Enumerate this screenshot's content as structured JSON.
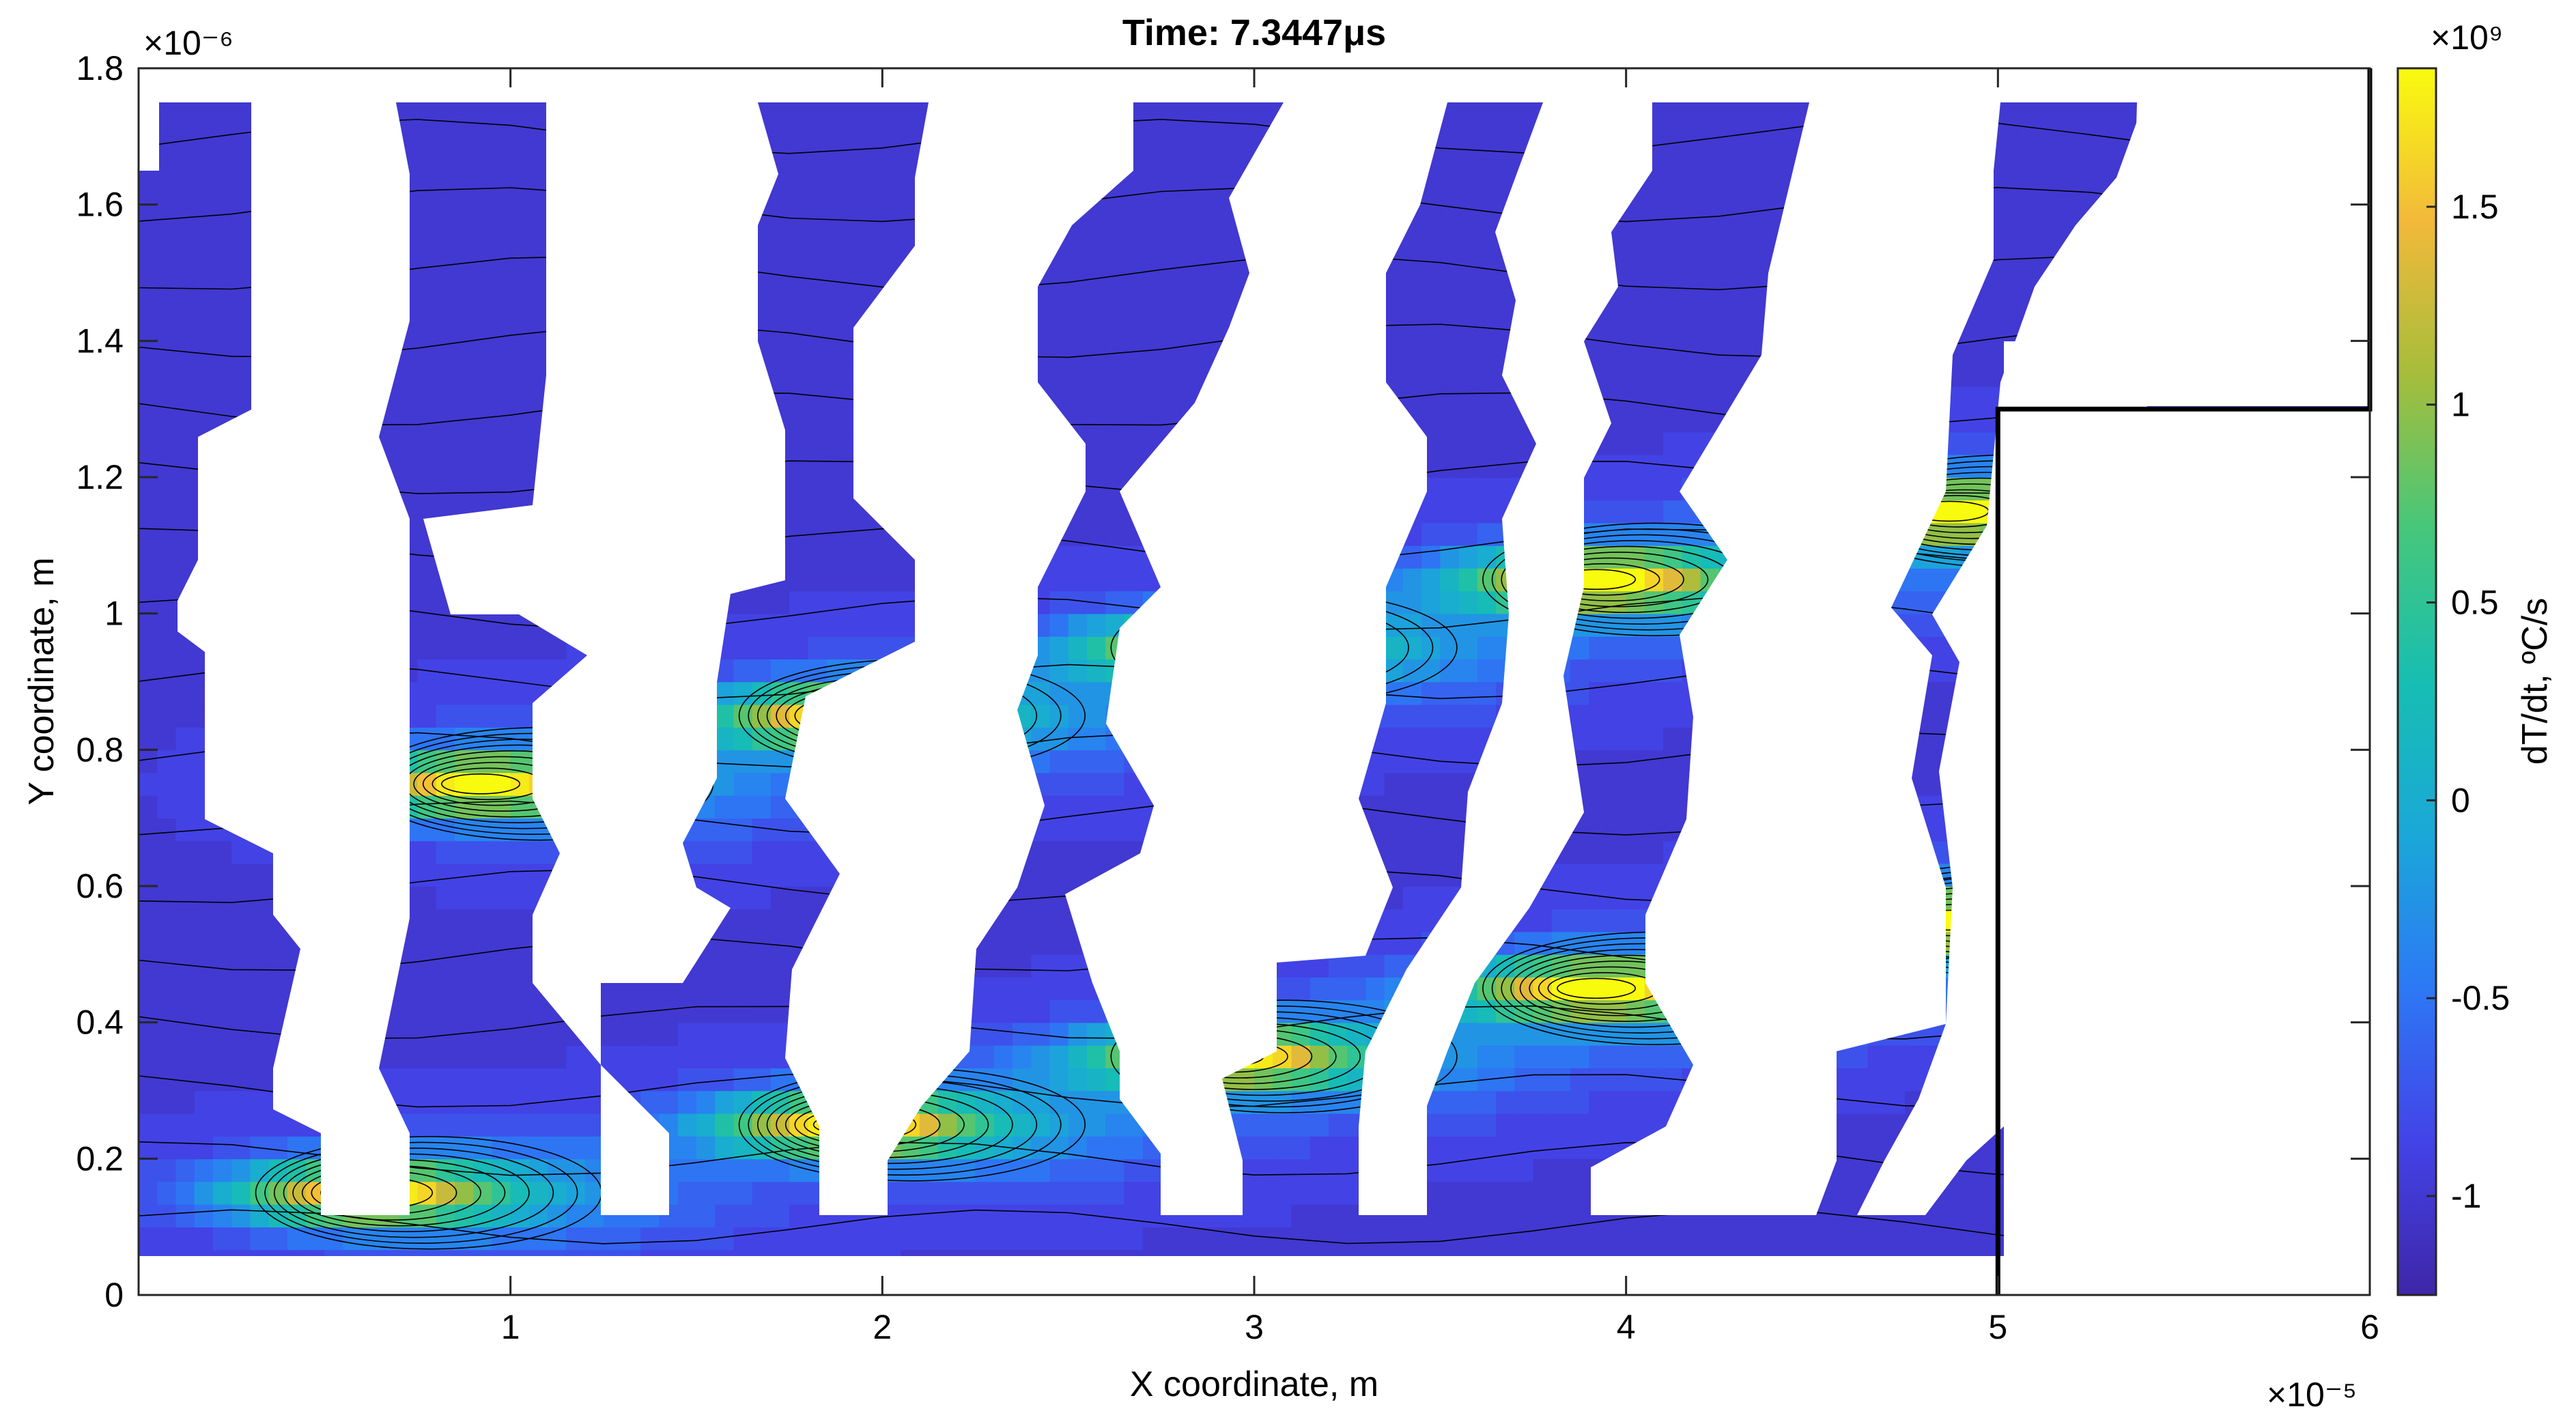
{
  "chart_data": {
    "type": "heatmap",
    "title": "Time:  7.3447μs",
    "xlabel": "X coordinate, m",
    "ylabel": "Y coordinate, m",
    "x_multiplier": "×10⁻⁵",
    "y_multiplier": "×10⁻⁶",
    "xlim": [
      0,
      6
    ],
    "ylim": [
      0,
      1.8
    ],
    "x_ticks": [
      "1",
      "2",
      "3",
      "4",
      "5",
      "6"
    ],
    "x_tick_values": [
      1,
      2,
      3,
      4,
      5,
      6
    ],
    "y_ticks": [
      "0",
      "0.2",
      "0.4",
      "0.6",
      "0.8",
      "1",
      "1.2",
      "1.4",
      "1.6",
      "1.8"
    ],
    "y_tick_values": [
      0,
      0.2,
      0.4,
      0.6,
      0.8,
      1.0,
      1.2,
      1.4,
      1.6,
      1.8
    ],
    "colorbar": {
      "label": "dT/dt, ºC/s",
      "multiplier": "×10⁹",
      "range": [
        -1.25,
        1.85
      ],
      "ticks": [
        "-1",
        "-0.5",
        "0",
        "0.5",
        "1",
        "1.5"
      ],
      "tick_values": [
        -1,
        -0.5,
        0,
        0.5,
        1,
        1.5
      ],
      "colormap": "parula"
    },
    "background_value": -0.95,
    "hotspots": [
      {
        "x": 0.6,
        "y": 0.15,
        "strength": 2.4
      },
      {
        "x": 0.9,
        "y": 0.75,
        "strength": 2.4
      },
      {
        "x": 1.9,
        "y": 0.25,
        "strength": 2.4
      },
      {
        "x": 1.9,
        "y": 0.85,
        "strength": 2.4
      },
      {
        "x": 2.9,
        "y": 0.35,
        "strength": 2.4
      },
      {
        "x": 2.9,
        "y": 0.95,
        "strength": 2.4
      },
      {
        "x": 3.9,
        "y": 0.45,
        "strength": 2.4
      },
      {
        "x": 3.9,
        "y": 1.05,
        "strength": 2.4
      },
      {
        "x": 4.85,
        "y": 0.55,
        "strength": 2.4
      },
      {
        "x": 4.85,
        "y": 1.15,
        "strength": 2.4
      }
    ],
    "boundary_line": [
      [
        5.0,
        0
      ],
      [
        5.0,
        1.3
      ],
      [
        6.0,
        1.3
      ],
      [
        6.0,
        1.8
      ]
    ],
    "grid": false,
    "legend": "none"
  },
  "colors": {
    "boundary": "#000000",
    "axis": "#262626"
  }
}
